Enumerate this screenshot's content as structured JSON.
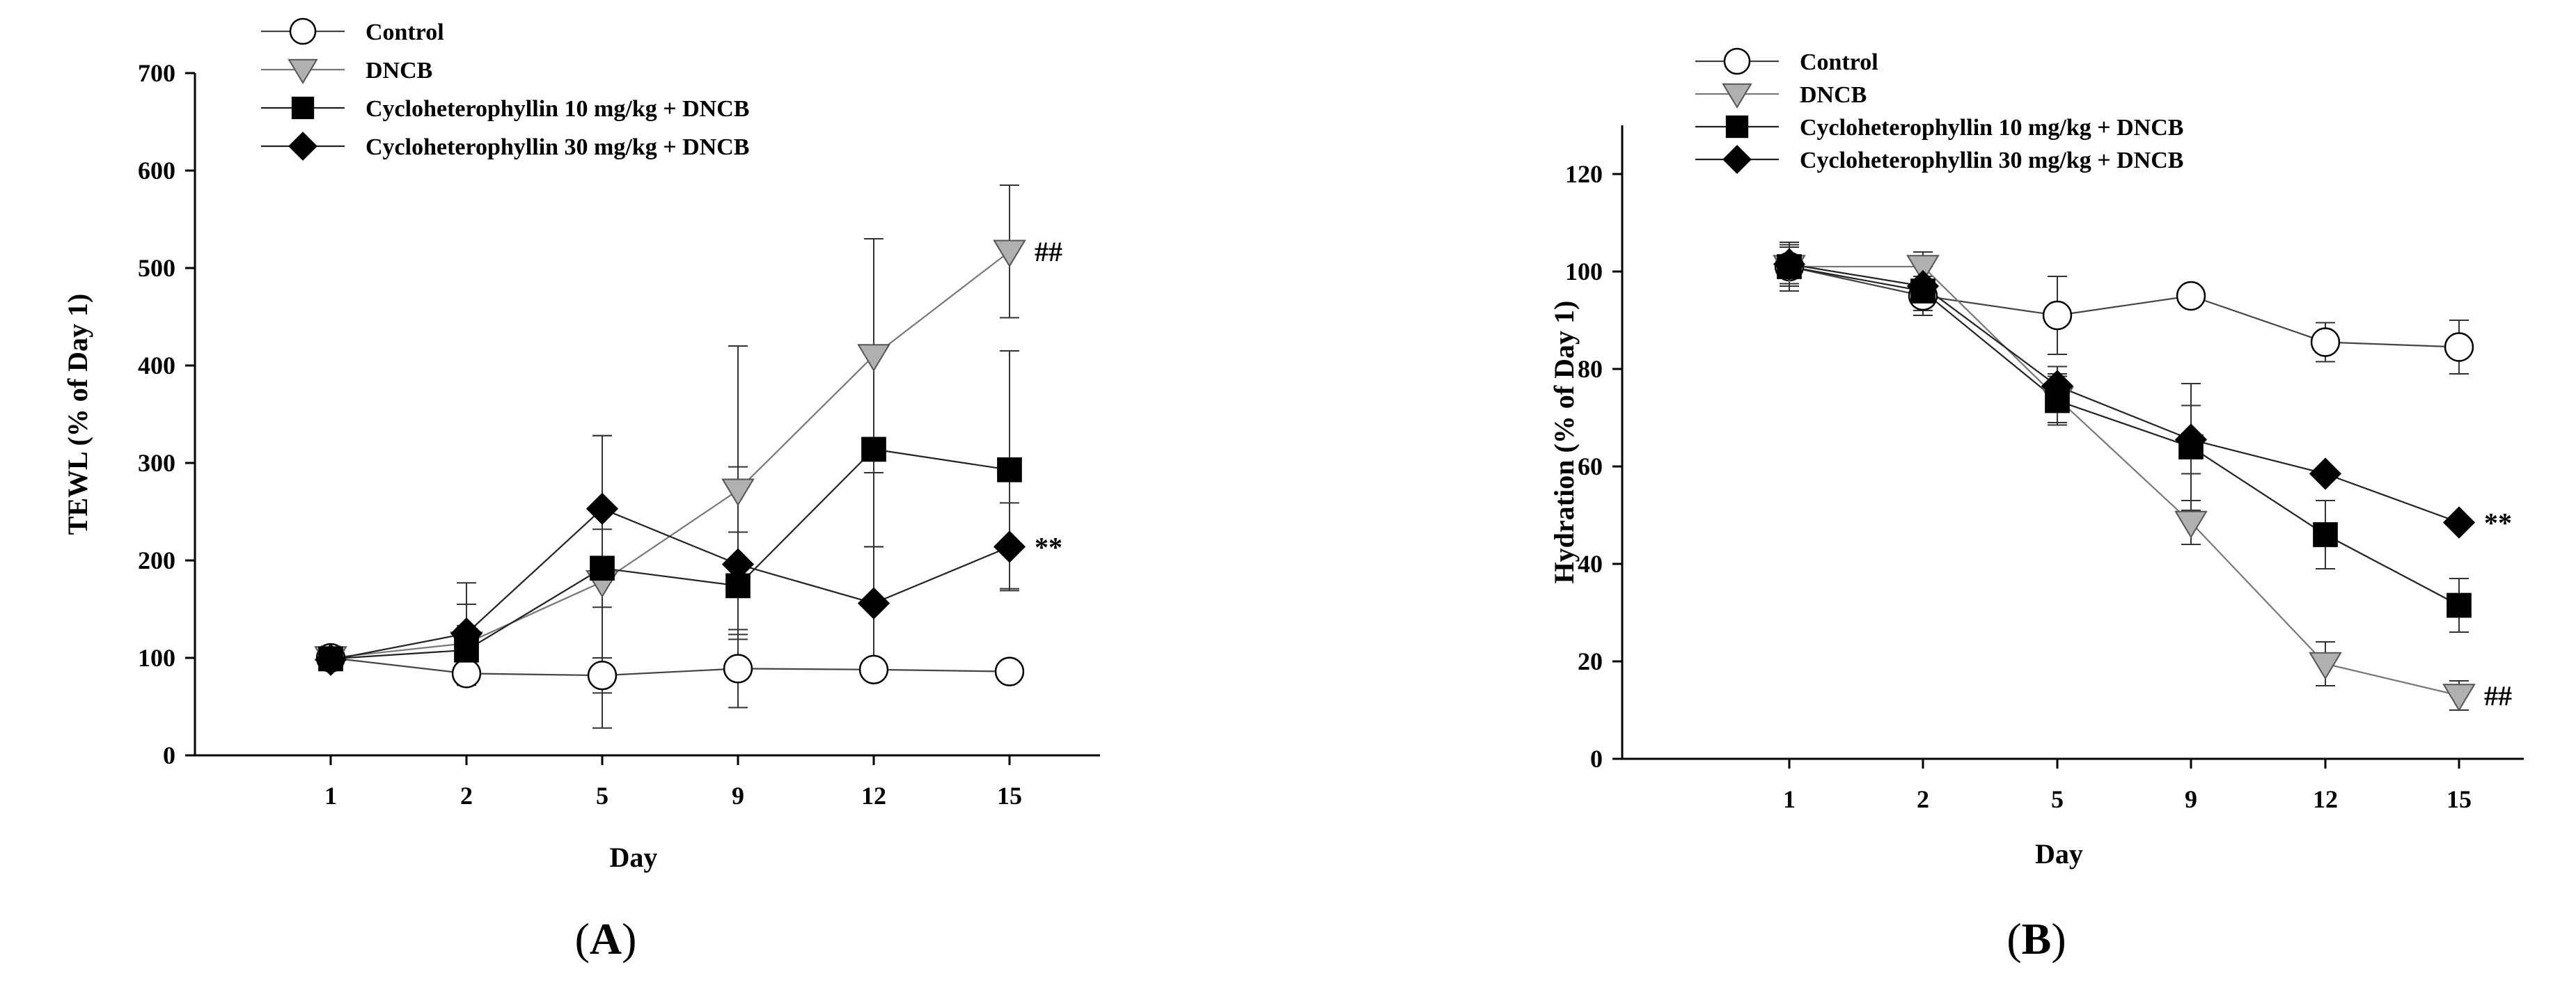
{
  "chart_data": [
    {
      "type": "line",
      "panel_label": "A",
      "x": [
        "1",
        "2",
        "5",
        "9",
        "12",
        "15"
      ],
      "xlabel": "Day",
      "ylabel": "TEWL (% of Day 1)",
      "ylim": [
        0,
        700
      ],
      "yticks": [
        "0",
        "100",
        "200",
        "300",
        "400",
        "500",
        "600",
        "700"
      ],
      "error_bars": true,
      "legend_position": "top-left",
      "series": [
        {
          "name": "Control",
          "marker": "circle-open",
          "values": [
            100,
            84,
            82,
            89,
            88,
            86
          ],
          "errors": [
            10,
            12,
            18,
            40,
            10,
            0
          ]
        },
        {
          "name": "DNCB",
          "marker": "triangle-down-gray",
          "values": [
            100,
            115,
            178,
            272,
            410,
            517
          ],
          "errors": [
            12,
            40,
            150,
            148,
            120,
            68
          ]
        },
        {
          "name": "Cycloheterophyllin  10 mg/kg + DNCB",
          "marker": "square-filled",
          "values": [
            99,
            108,
            192,
            174,
            314,
            293
          ],
          "errors": [
            10,
            25,
            40,
            55,
            100,
            122
          ]
        },
        {
          "name": "Cycloheterophyllin  30 mg/kg + DNCB",
          "marker": "diamond-filled",
          "values": [
            98,
            125,
            253,
            196,
            156,
            214
          ],
          "errors": [
            8,
            52,
            75,
            100,
            58,
            45
          ]
        }
      ],
      "annotations": [
        {
          "text": "##",
          "series": "DNCB",
          "x": "15"
        },
        {
          "text": "**",
          "series": "Cycloheterophyllin  30 mg/kg + DNCB",
          "x": "15"
        }
      ]
    },
    {
      "type": "line",
      "panel_label": "B",
      "x": [
        "1",
        "2",
        "5",
        "9",
        "12",
        "15"
      ],
      "xlabel": "Day",
      "ylabel": "Hydration (% of Day 1)",
      "ylim": [
        0,
        130
      ],
      "yticks": [
        "0",
        "20",
        "40",
        "60",
        "80",
        "100",
        "120"
      ],
      "error_bars": true,
      "legend_position": "top-left",
      "series": [
        {
          "name": "Control",
          "marker": "circle-open",
          "values": [
            101,
            95,
            91,
            95,
            85.5,
            84.5
          ],
          "errors": [
            5,
            4,
            8,
            0,
            4,
            5.5
          ]
        },
        {
          "name": "DNCB",
          "marker": "triangle-down-gray",
          "values": [
            101,
            101,
            74,
            48.5,
            19.5,
            13
          ],
          "errors": [
            4,
            3,
            5,
            4.5,
            4.5,
            3
          ]
        },
        {
          "name": "Cycloheterophyllin  10 mg/kg + DNCB",
          "marker": "square-filled",
          "values": [
            101,
            96,
            73.5,
            64,
            46,
            31.5
          ],
          "errors": [
            4,
            5,
            5,
            13,
            7,
            5.5
          ]
        },
        {
          "name": "Cycloheterophyllin  30 mg/kg + DNCB",
          "marker": "diamond-filled",
          "values": [
            101.5,
            97,
            76.5,
            65.5,
            58.5,
            48.5
          ],
          "errors": [
            4,
            5,
            4,
            7,
            0,
            0
          ]
        }
      ],
      "annotations": [
        {
          "text": "**",
          "series": "Cycloheterophyllin  30 mg/kg + DNCB",
          "x": "15"
        },
        {
          "text": "##",
          "series": "DNCB",
          "x": "15"
        }
      ]
    }
  ]
}
